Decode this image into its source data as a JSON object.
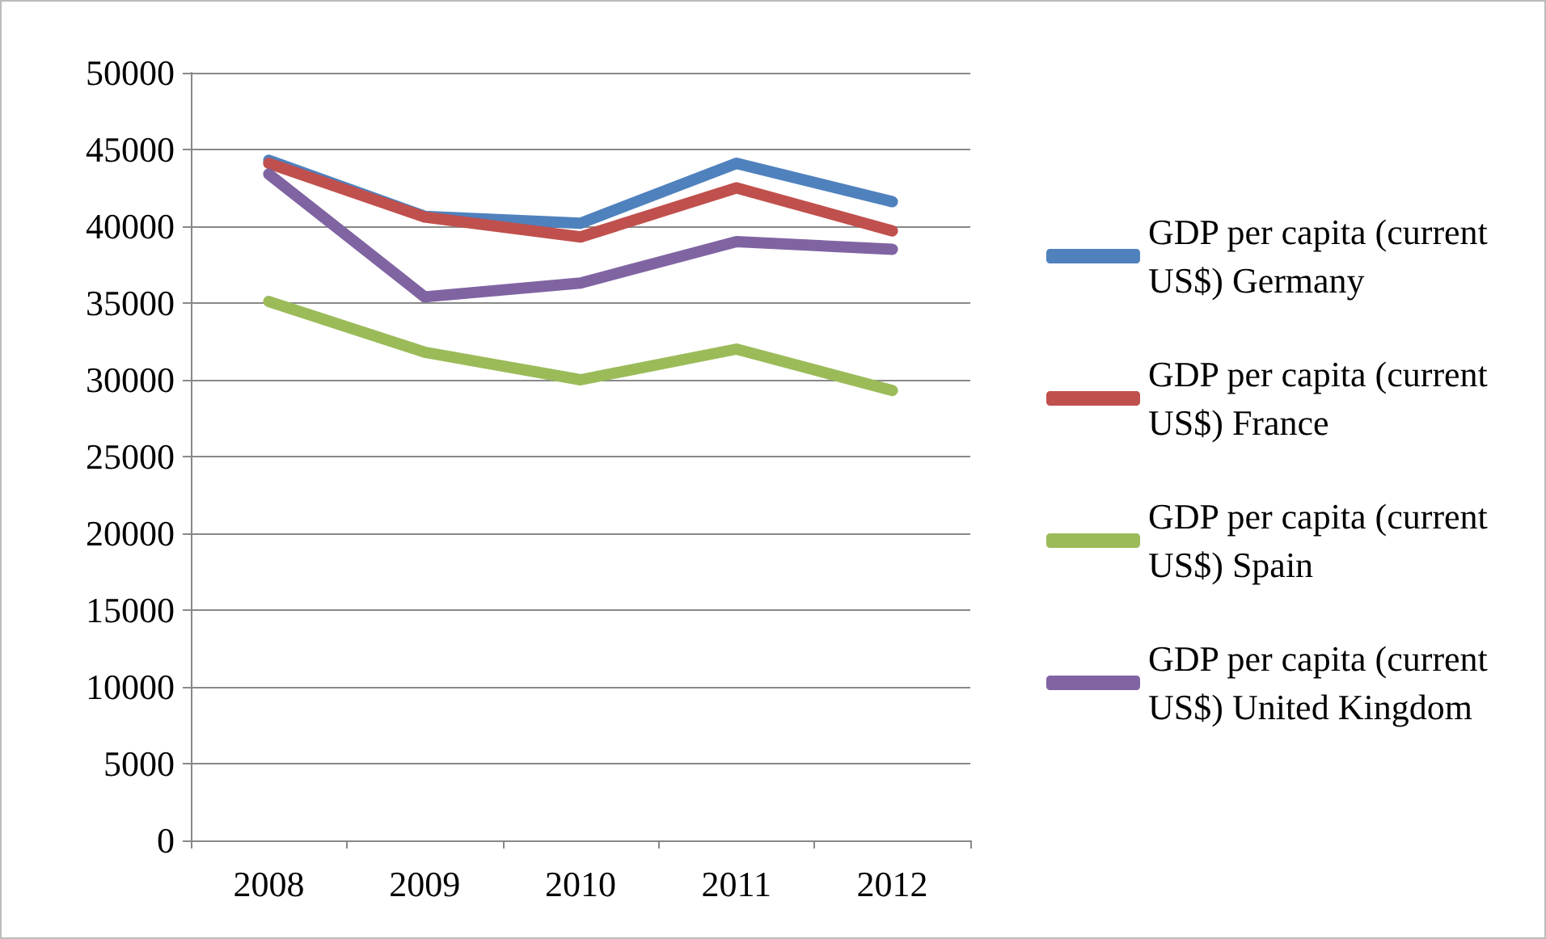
{
  "chart_data": {
    "type": "line",
    "categories": [
      "2008",
      "2009",
      "2010",
      "2011",
      "2012"
    ],
    "series": [
      {
        "name": "GDP per capita (current US$) Germany",
        "color": "#4f81bd",
        "values": [
          44300,
          40650,
          40200,
          44100,
          41600
        ]
      },
      {
        "name": "GDP per capita (current US$) France",
        "color": "#c0504d",
        "values": [
          44100,
          40600,
          39300,
          42500,
          39700
        ]
      },
      {
        "name": "GDP per capita (current US$) Spain",
        "color": "#9bbb59",
        "values": [
          35100,
          31800,
          30000,
          32000,
          29300
        ]
      },
      {
        "name": "GDP per capita (current US$) United Kingdom",
        "color": "#8064a2",
        "values": [
          43400,
          35400,
          36300,
          39000,
          38500
        ]
      }
    ],
    "ylim": [
      0,
      50000
    ],
    "yticks": [
      0,
      5000,
      10000,
      15000,
      20000,
      25000,
      30000,
      35000,
      40000,
      45000,
      50000
    ],
    "grid": "y",
    "legend": "right",
    "marker": "none",
    "line_style": "solid"
  }
}
